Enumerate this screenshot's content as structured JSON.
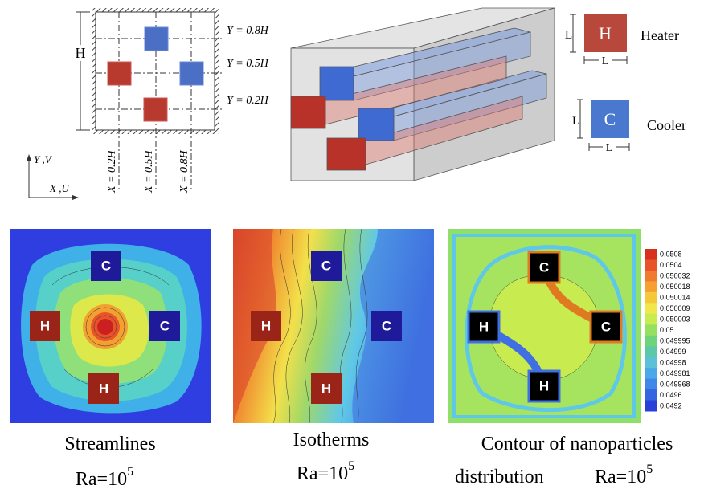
{
  "schematic": {
    "y_lines": [
      "Y = 0.8H",
      "Y = 0.5H",
      "Y = 0.2H"
    ],
    "x_lines": [
      "X = 0.2H",
      "X = 0.5H",
      "X = 0.8H"
    ],
    "height_label": "H",
    "axis_y": "Y ,V",
    "axis_x": "X ,U"
  },
  "legend": {
    "heater": {
      "symbol": "H",
      "name": "Heater",
      "side": "L",
      "base": "L"
    },
    "cooler": {
      "symbol": "C",
      "name": "Cooler",
      "side": "L",
      "base": "L"
    }
  },
  "panels": [
    {
      "caption": "Streamlines",
      "ra": "Ra=10",
      "ra_exp": "5",
      "blocks": [
        "C",
        "H",
        "C",
        "H"
      ]
    },
    {
      "caption": "Isotherms",
      "ra": "Ra=10",
      "ra_exp": "5",
      "blocks": [
        "C",
        "H",
        "C",
        "H"
      ]
    },
    {
      "caption": "Contour of nanoparticles",
      "caption_2": "distribution",
      "ra": "Ra=10",
      "ra_exp": "5",
      "blocks": [
        "C",
        "H",
        "C",
        "H"
      ]
    }
  ],
  "colorbar": [
    "0.0508",
    "0.0504",
    "0.050032",
    "0.050018",
    "0.050014",
    "0.050009",
    "0.050003",
    "0.05",
    "0.049995",
    "0.04999",
    "0.04998",
    "0.049981",
    "0.049968",
    "0.0496",
    "0.0492"
  ]
}
